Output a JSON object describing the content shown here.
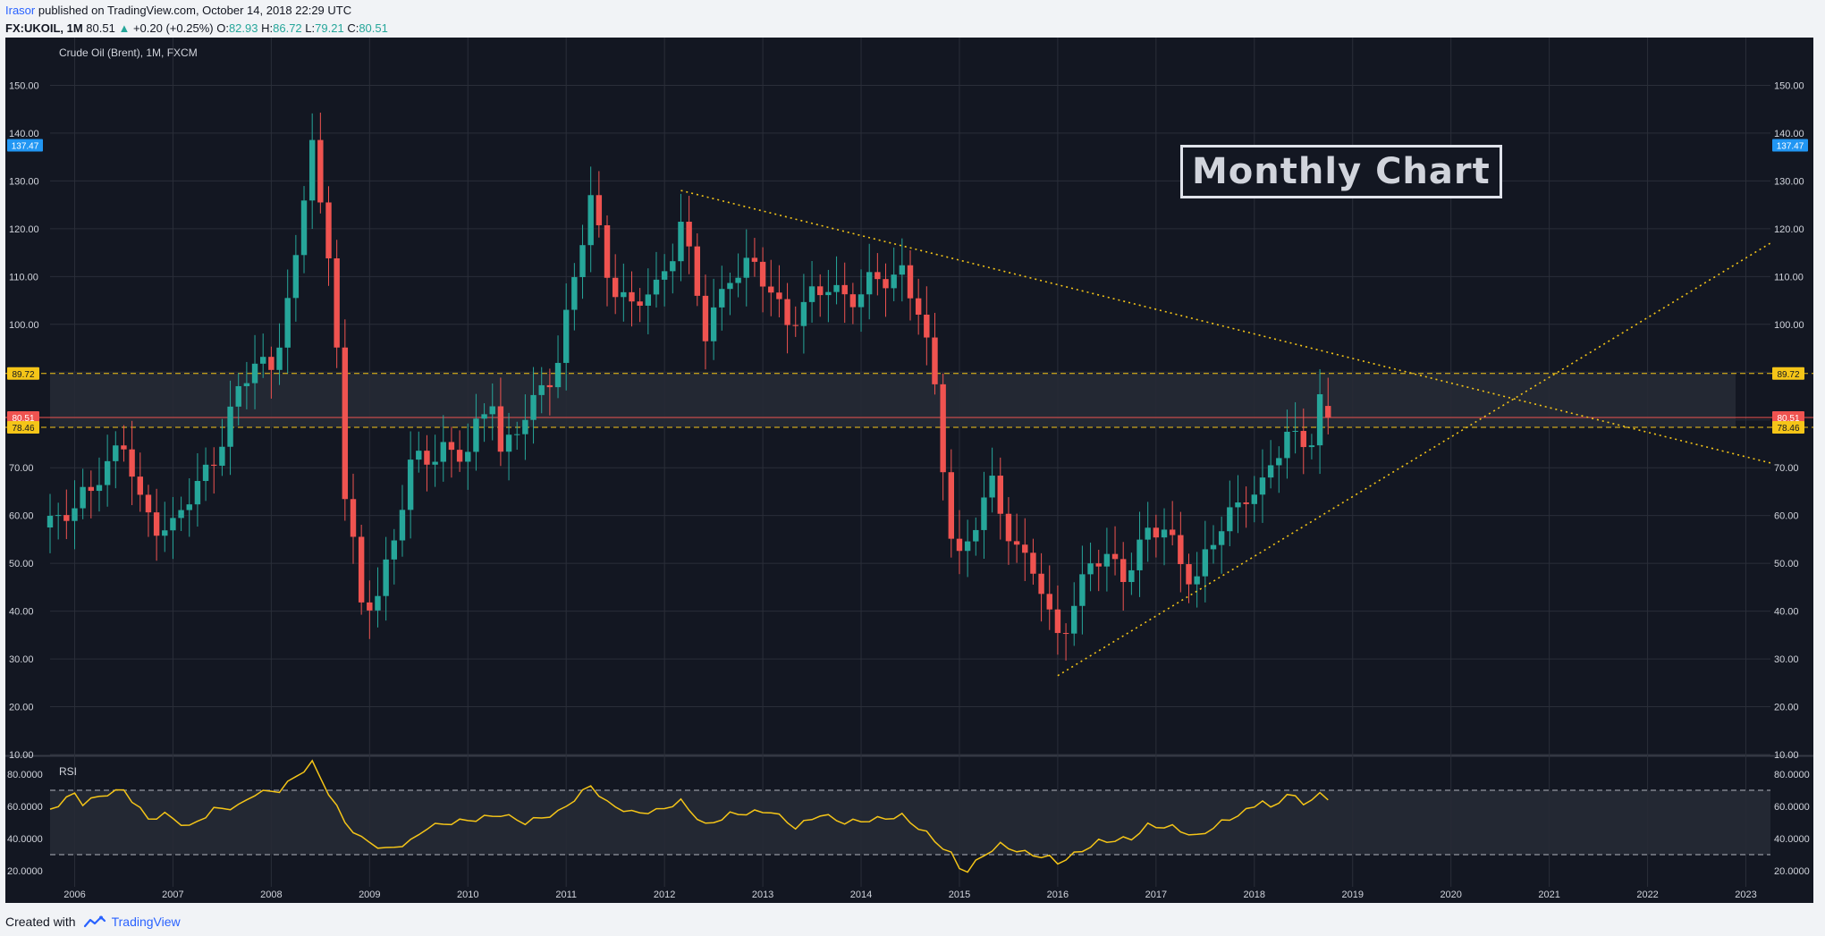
{
  "header": {
    "author": "Irasor",
    "published": "published on TradingView.com, October 14, 2018 22:29 UTC",
    "symbol": "FX:UKOIL, 1M",
    "last": "80.51",
    "arrow": "▲",
    "change": "+0.20 (+0.25%)",
    "o_label": "O:",
    "o_value": "82.93",
    "h_label": "H:",
    "h_value": "86.72",
    "l_label": "L:",
    "l_value": "79.21",
    "c_label": "C:",
    "c_value": "80.51"
  },
  "footer": {
    "created_with": "Created with",
    "brand": "TradingView",
    "logo_icon": "tradingview-logo-icon"
  },
  "main_pane": {
    "title": "Crude Oil (Brent), 1M, FXCM",
    "annotation": "Monthly Chart"
  },
  "rsi_pane": {
    "title": "RSI"
  },
  "colors": {
    "background": "#131722",
    "grid": "#2a2e39",
    "up": "#26a69a",
    "down": "#ef5350",
    "trendline": "#f5c518",
    "rsi": "#f5c518",
    "zone": "#262a35",
    "axis_text": "#d1d4dc"
  },
  "chart_data": [
    {
      "type": "candlestick",
      "title": "Crude Oil (Brent), 1M, FXCM",
      "y_ticks": [
        "10.00",
        "20.00",
        "30.00",
        "40.00",
        "50.00",
        "60.00",
        "70.00",
        "80.00",
        "90.00",
        "100.00",
        "110.00",
        "120.00",
        "130.00",
        "140.00",
        "150.00"
      ],
      "ylim": [
        10,
        160
      ],
      "x_ticks": [
        "2006",
        "2007",
        "2008",
        "2009",
        "2010",
        "2011",
        "2012",
        "2013",
        "2014",
        "2015",
        "2016",
        "2017",
        "2018",
        "2019",
        "2020",
        "2021",
        "2022",
        "2023"
      ],
      "xlim": [
        "2005-10",
        "2023-04"
      ],
      "anchors": [
        [
          "2005-10",
          59
        ],
        [
          "2006-01",
          60
        ],
        [
          "2006-04",
          70
        ],
        [
          "2006-07",
          74
        ],
        [
          "2006-09",
          62
        ],
        [
          "2007-01",
          57
        ],
        [
          "2007-04",
          66
        ],
        [
          "2007-07",
          77
        ],
        [
          "2007-11",
          92
        ],
        [
          "2008-01",
          92
        ],
        [
          "2008-04",
          111
        ],
        [
          "2008-06",
          140
        ],
        [
          "2008-07",
          125
        ],
        [
          "2008-08",
          114
        ],
        [
          "2008-09",
          98
        ],
        [
          "2008-10",
          64
        ],
        [
          "2008-12",
          40
        ],
        [
          "2009-02",
          44
        ],
        [
          "2009-06",
          69
        ],
        [
          "2009-10",
          75
        ],
        [
          "2010-01",
          72
        ],
        [
          "2010-04",
          86
        ],
        [
          "2010-05",
          74
        ],
        [
          "2010-09",
          82
        ],
        [
          "2010-12",
          94
        ],
        [
          "2011-04",
          125
        ],
        [
          "2011-06",
          112
        ],
        [
          "2011-09",
          103
        ],
        [
          "2011-12",
          107
        ],
        [
          "2012-03",
          122
        ],
        [
          "2012-06",
          97
        ],
        [
          "2012-09",
          112
        ],
        [
          "2012-12",
          111
        ],
        [
          "2013-04",
          102
        ],
        [
          "2013-06",
          103
        ],
        [
          "2013-09",
          108
        ],
        [
          "2014-01",
          106
        ],
        [
          "2014-06",
          112
        ],
        [
          "2014-08",
          103
        ],
        [
          "2014-10",
          85
        ],
        [
          "2014-12",
          57
        ],
        [
          "2015-01",
          52
        ],
        [
          "2015-05",
          65
        ],
        [
          "2015-08",
          54
        ],
        [
          "2015-10",
          49
        ],
        [
          "2015-12",
          37
        ],
        [
          "2016-01",
          35
        ],
        [
          "2016-05",
          50
        ],
        [
          "2016-09",
          49
        ],
        [
          "2016-12",
          56
        ],
        [
          "2017-02",
          56
        ],
        [
          "2017-06",
          47
        ],
        [
          "2017-09",
          57
        ],
        [
          "2017-12",
          66
        ],
        [
          "2018-02",
          65
        ],
        [
          "2018-05",
          77
        ],
        [
          "2018-08",
          77
        ],
        [
          "2018-09",
          83
        ],
        [
          "2018-10",
          80.51
        ]
      ],
      "horizontal_levels": [
        {
          "label": "89.72",
          "value": 89.72,
          "style": "dashed",
          "color": "#f5c518"
        },
        {
          "label": "80.51",
          "value": 80.51,
          "style": "solid",
          "color": "#ef5350"
        },
        {
          "label": "78.46",
          "value": 78.46,
          "style": "dashed",
          "color": "#f5c518"
        }
      ],
      "right_axis_badge": {
        "label": "137.47",
        "value": 137.47,
        "color": "#2196f3"
      },
      "zone": {
        "from": 78.46,
        "to": 89.72
      },
      "trendlines": [
        {
          "from": [
            "2012-03",
            128
          ],
          "to": [
            "2023-04",
            71
          ],
          "style": "dotted"
        },
        {
          "from": [
            "2016-01",
            26.5
          ],
          "to": [
            "2023-04",
            117
          ],
          "style": "dotted"
        }
      ]
    },
    {
      "type": "line",
      "title": "RSI",
      "y_ticks": [
        "20.0000",
        "40.0000",
        "60.0000",
        "80.0000"
      ],
      "ylim": [
        10,
        90
      ],
      "band": [
        30,
        70
      ],
      "anchors": [
        [
          "2005-10",
          58
        ],
        [
          "2006-01",
          68
        ],
        [
          "2006-02",
          62
        ],
        [
          "2006-05",
          68
        ],
        [
          "2006-07",
          70
        ],
        [
          "2006-10",
          52
        ],
        [
          "2006-12",
          55
        ],
        [
          "2007-03",
          47
        ],
        [
          "2007-06",
          58
        ],
        [
          "2007-09",
          60
        ],
        [
          "2007-11",
          68
        ],
        [
          "2008-02",
          70
        ],
        [
          "2008-06",
          87
        ],
        [
          "2008-10",
          50
        ],
        [
          "2008-12",
          40
        ],
        [
          "2009-03",
          33
        ],
        [
          "2009-06",
          38
        ],
        [
          "2009-08",
          47
        ],
        [
          "2009-11",
          50
        ],
        [
          "2010-02",
          52
        ],
        [
          "2010-05",
          55
        ],
        [
          "2010-08",
          50
        ],
        [
          "2010-12",
          56
        ],
        [
          "2011-04",
          73
        ],
        [
          "2011-06",
          62
        ],
        [
          "2011-09",
          56
        ],
        [
          "2011-12",
          57
        ],
        [
          "2012-03",
          63
        ],
        [
          "2012-06",
          48
        ],
        [
          "2012-09",
          55
        ],
        [
          "2013-02",
          57
        ],
        [
          "2013-05",
          47
        ],
        [
          "2013-08",
          55
        ],
        [
          "2013-11",
          50
        ],
        [
          "2014-03",
          52
        ],
        [
          "2014-06",
          54
        ],
        [
          "2014-09",
          43
        ],
        [
          "2014-12",
          30
        ],
        [
          "2015-01",
          22
        ],
        [
          "2015-02",
          20
        ],
        [
          "2015-04",
          30
        ],
        [
          "2015-06",
          36
        ],
        [
          "2015-09",
          31
        ],
        [
          "2015-12",
          28
        ],
        [
          "2016-01",
          25
        ],
        [
          "2016-03",
          30
        ],
        [
          "2016-06",
          38
        ],
        [
          "2016-10",
          40
        ],
        [
          "2016-12",
          48
        ],
        [
          "2017-03",
          47
        ],
        [
          "2017-06",
          41
        ],
        [
          "2017-09",
          50
        ],
        [
          "2017-12",
          57
        ],
        [
          "2018-02",
          64
        ],
        [
          "2018-03",
          58
        ],
        [
          "2018-05",
          68
        ],
        [
          "2018-07",
          62
        ],
        [
          "2018-09",
          67
        ],
        [
          "2018-10",
          65
        ]
      ]
    }
  ]
}
